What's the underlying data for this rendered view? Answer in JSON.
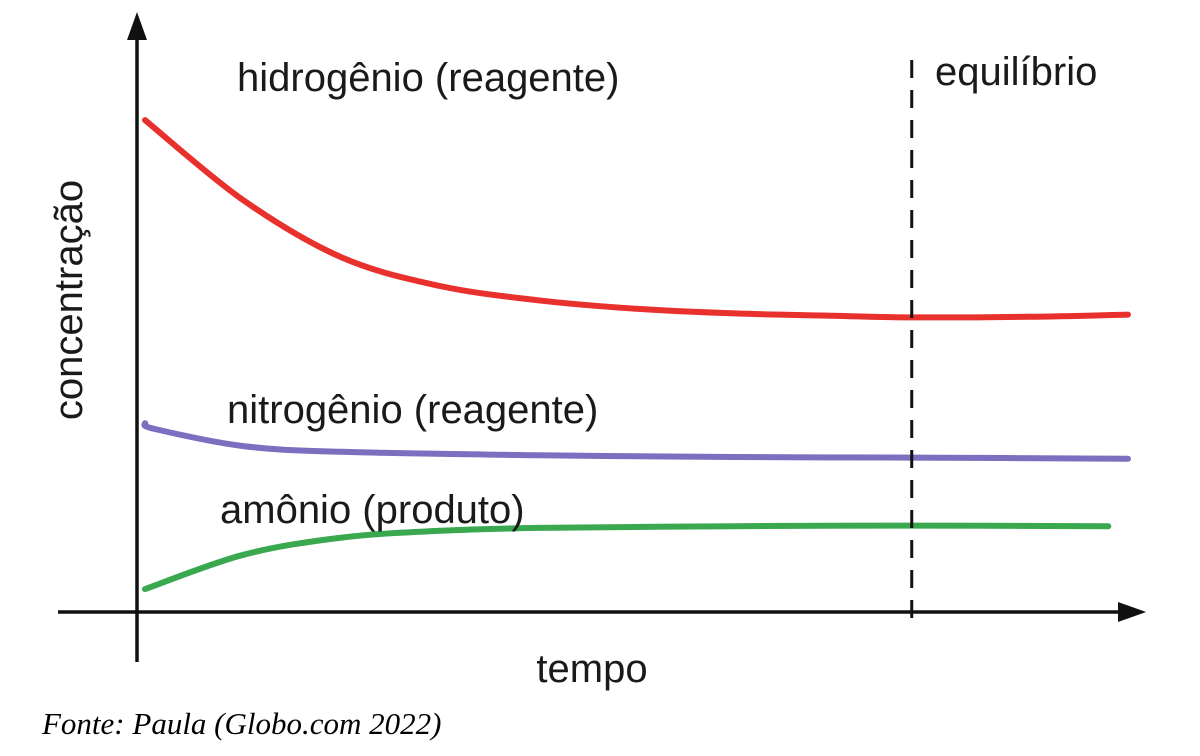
{
  "chart_data": {
    "type": "line",
    "xlabel": "tempo",
    "ylabel": "concentração",
    "equilibrium_label": "equilíbrio",
    "equilibrium_x": 0.78,
    "xlim": [
      0,
      1
    ],
    "ylim": [
      0,
      1
    ],
    "grid": false,
    "legend": "none",
    "series": [
      {
        "name": "hidrogênio (reagente)",
        "color": "#e8302c",
        "x": [
          0,
          0.1,
          0.2,
          0.3,
          0.4,
          0.5,
          0.6,
          0.7,
          0.78,
          0.9,
          1.0
        ],
        "y": [
          0.86,
          0.72,
          0.62,
          0.57,
          0.545,
          0.53,
          0.522,
          0.518,
          0.515,
          0.516,
          0.52
        ]
      },
      {
        "name": "nitrogênio (reagente)",
        "color": "#7b6fc0",
        "x": [
          0,
          0.01,
          0.1,
          0.2,
          0.4,
          0.6,
          0.78,
          1.0
        ],
        "y": [
          0.33,
          0.32,
          0.29,
          0.28,
          0.274,
          0.271,
          0.27,
          0.268
        ]
      },
      {
        "name": "amônio (produto)",
        "color": "#3aa84e",
        "x": [
          0,
          0.1,
          0.2,
          0.3,
          0.4,
          0.6,
          0.78,
          0.98
        ],
        "y": [
          0.04,
          0.1,
          0.13,
          0.142,
          0.147,
          0.15,
          0.151,
          0.15
        ]
      }
    ]
  },
  "source_text": "Fonte: Paula (Globo.com 2022)"
}
